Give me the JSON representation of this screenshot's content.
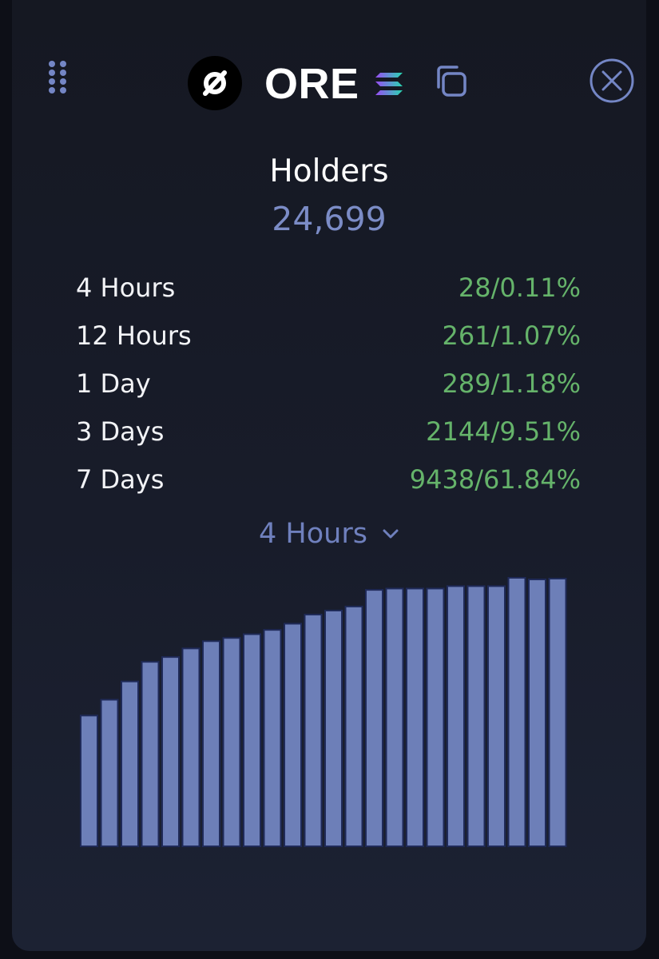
{
  "header": {
    "drag_icon": "grip-dots-icon",
    "logo_icon": "ore-logo-icon",
    "symbol": "ORE",
    "chain_icon": "solana-icon",
    "copy_icon": "copy-icon",
    "close_icon": "close-circle-icon"
  },
  "metric": {
    "title": "Holders",
    "value": "24,699"
  },
  "stats": [
    {
      "label": "4 Hours",
      "value": "28/0.11%"
    },
    {
      "label": "12 Hours",
      "value": "261/1.07%"
    },
    {
      "label": "1 Day",
      "value": "289/1.18%"
    },
    {
      "label": "3 Days",
      "value": "2144/9.51%"
    },
    {
      "label": "7 Days",
      "value": "9438/61.84%"
    }
  ],
  "period_select": {
    "selected": "4 Hours",
    "icon": "chevron-down-icon"
  },
  "colors": {
    "accent": "#7b8cc6",
    "positive": "#65b36a",
    "bar_fill": "#6d7fb8",
    "bar_stroke": "#1f2a58"
  },
  "chart_data": {
    "type": "bar",
    "title": "",
    "xlabel": "",
    "ylabel": "",
    "values": [
      0.487,
      0.546,
      0.614,
      0.687,
      0.705,
      0.737,
      0.764,
      0.776,
      0.79,
      0.806,
      0.829,
      0.863,
      0.878,
      0.893,
      0.955,
      0.96,
      0.96,
      0.96,
      0.969,
      0.969,
      0.969,
      1.0,
      0.994,
      0.997
    ],
    "ylim": [
      0,
      1
    ],
    "grid": false,
    "legend": "none"
  }
}
